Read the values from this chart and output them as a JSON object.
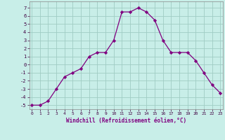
{
  "x": [
    0,
    1,
    2,
    3,
    4,
    5,
    6,
    7,
    8,
    9,
    10,
    11,
    12,
    13,
    14,
    15,
    16,
    17,
    18,
    19,
    20,
    21,
    22,
    23
  ],
  "y": [
    -5,
    -5,
    -4.5,
    -3,
    -1.5,
    -1,
    -0.5,
    1,
    1.5,
    1.5,
    3,
    6.5,
    6.5,
    7,
    6.5,
    5.5,
    3,
    1.5,
    1.5,
    1.5,
    0.5,
    -1,
    -2.5,
    -3.5
  ],
  "line_color": "#800080",
  "marker": "D",
  "marker_size": 2.2,
  "bg_color": "#c8eee8",
  "grid_color": "#a0ccc4",
  "xlabel": "Windchill (Refroidissement éolien,°C)",
  "xlabel_color": "#800080",
  "ylabel_ticks": [
    -5,
    -4,
    -3,
    -2,
    -1,
    0,
    1,
    2,
    3,
    4,
    5,
    6,
    7
  ],
  "xlim": [
    -0.3,
    23.3
  ],
  "ylim": [
    -5.5,
    7.8
  ],
  "xticks": [
    0,
    1,
    2,
    3,
    4,
    5,
    6,
    7,
    8,
    9,
    10,
    11,
    12,
    13,
    14,
    15,
    16,
    17,
    18,
    19,
    20,
    21,
    22,
    23
  ]
}
